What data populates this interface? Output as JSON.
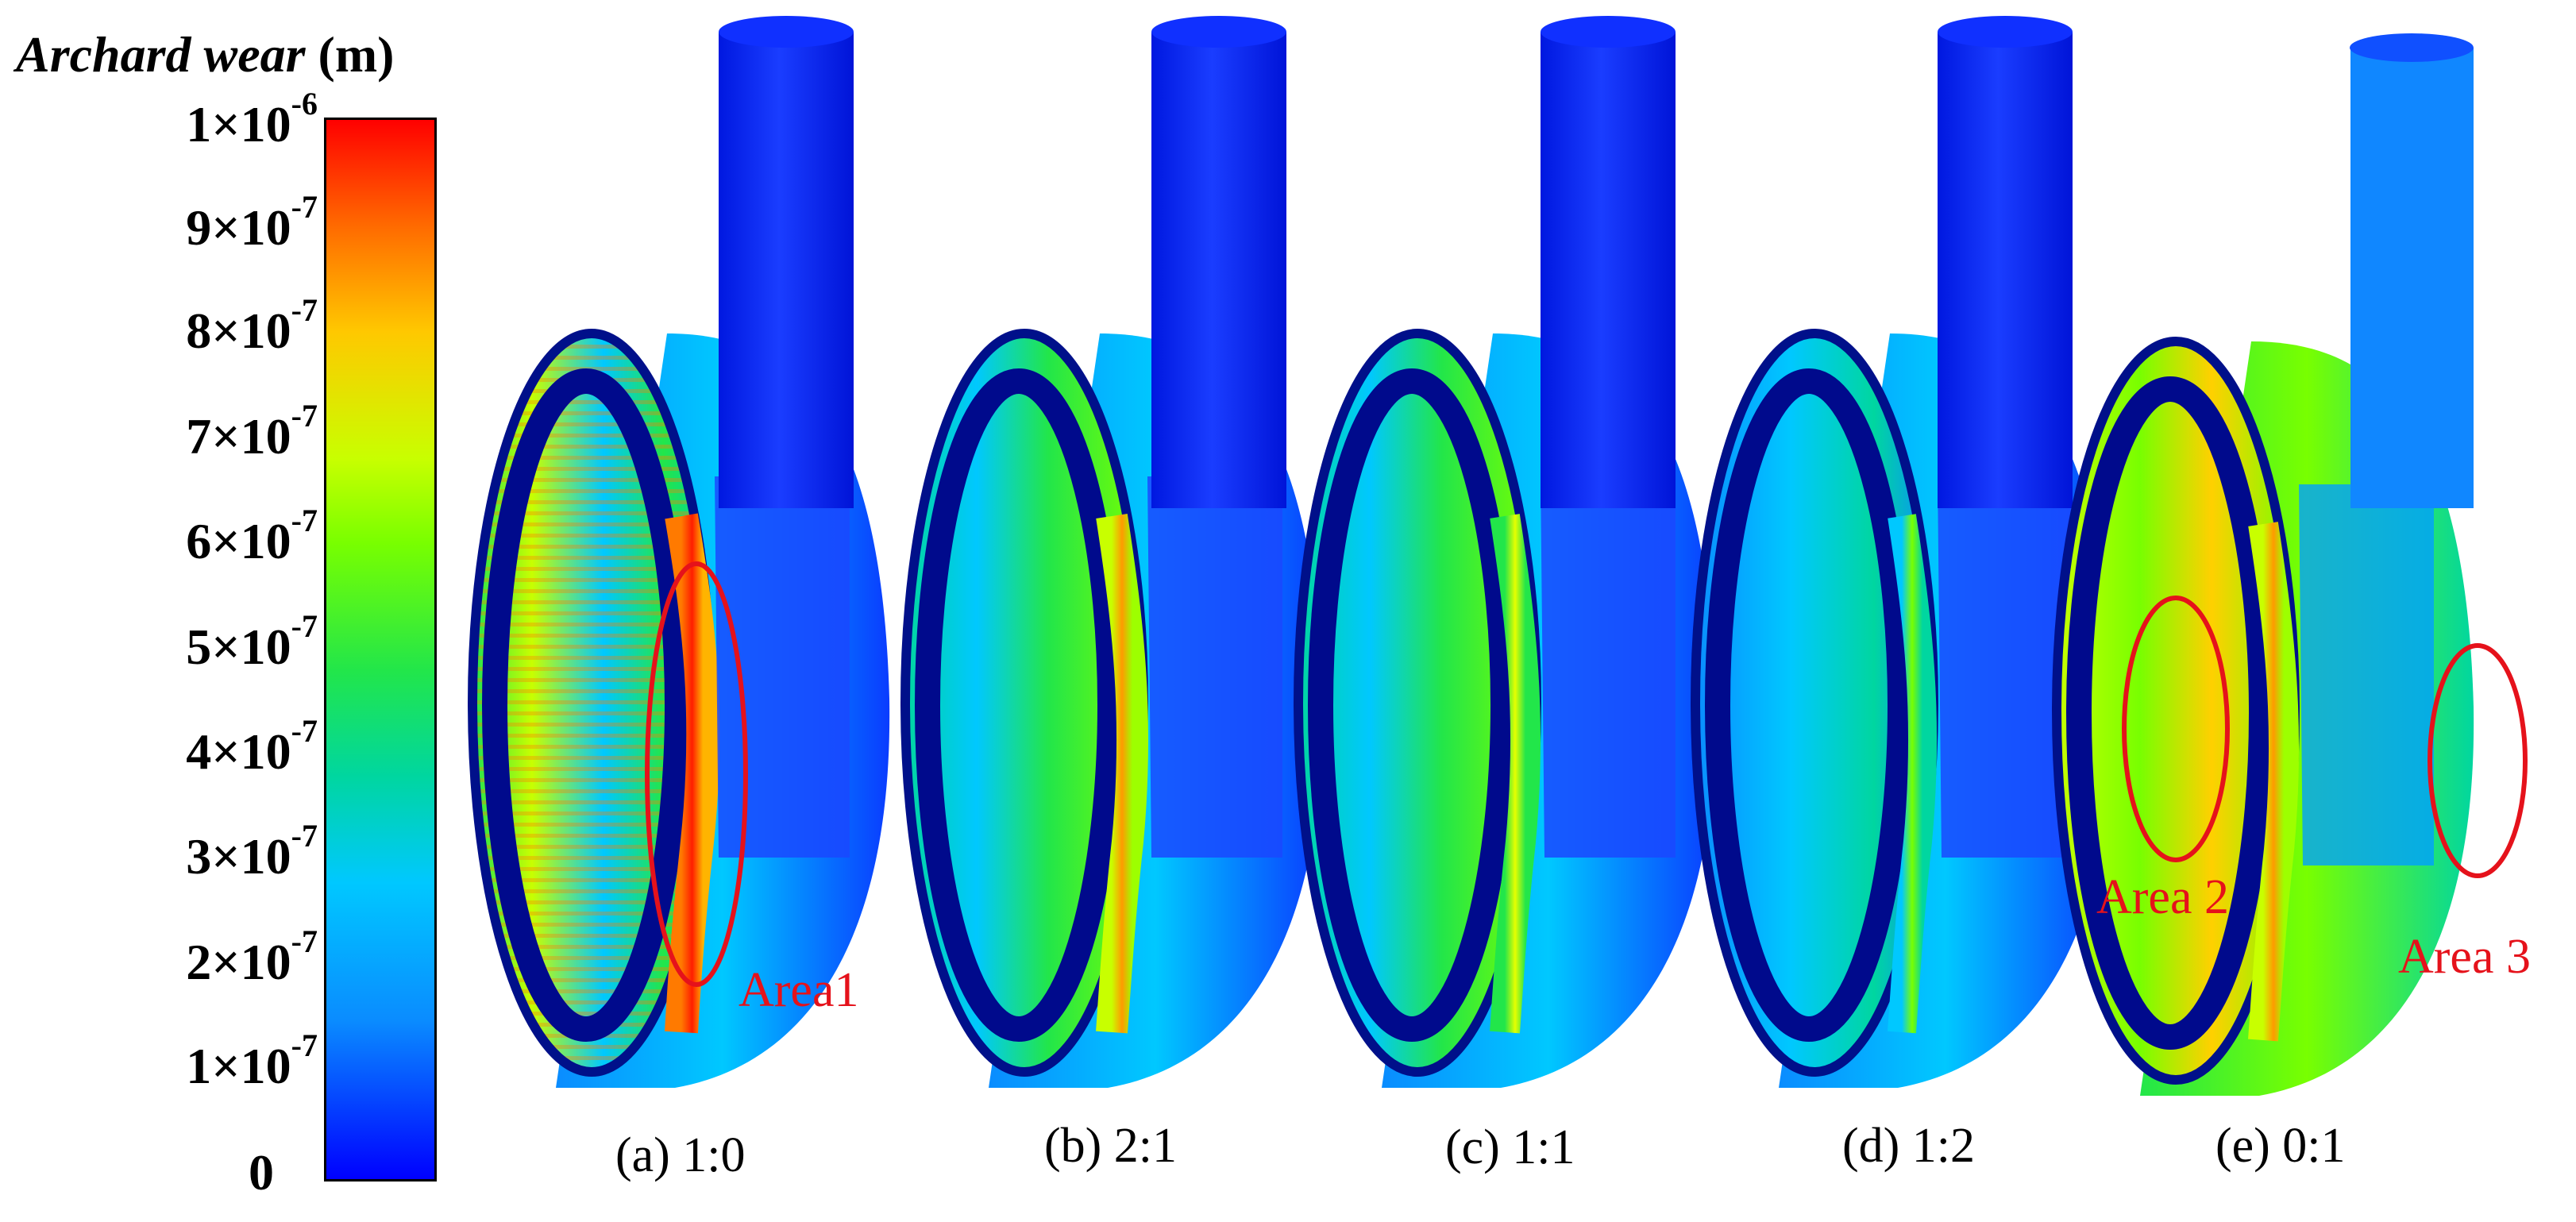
{
  "legend": {
    "title_italic": "Archard wear",
    "title_unit": " (m)",
    "ticks": [
      {
        "m": "1×10",
        "e": "-6"
      },
      {
        "m": "9×10",
        "e": "-7"
      },
      {
        "m": "8×10",
        "e": "-7"
      },
      {
        "m": "7×10",
        "e": "-7"
      },
      {
        "m": "6×10",
        "e": "-7"
      },
      {
        "m": "5×10",
        "e": "-7"
      },
      {
        "m": "4×10",
        "e": "-7"
      },
      {
        "m": "3×10",
        "e": "-7"
      },
      {
        "m": "2×10",
        "e": "-7"
      },
      {
        "m": "1×10",
        "e": "-7"
      },
      {
        "m": "0",
        "e": ""
      }
    ],
    "colors": [
      "#0000ff",
      "#0a8cff",
      "#00c8ff",
      "#00d6a0",
      "#22e64a",
      "#78ff00",
      "#c8ff00",
      "#ffc800",
      "#ff6a00",
      "#ff0000"
    ]
  },
  "panels": [
    {
      "caption": "(a) 1:0"
    },
    {
      "caption": "(b) 2:1"
    },
    {
      "caption": "(c) 1:1"
    },
    {
      "caption": "(d) 1:2"
    },
    {
      "caption": "(e) 0:1"
    }
  ],
  "areas": [
    {
      "label": "Area1"
    },
    {
      "label": "Area 2"
    },
    {
      "label": "Area 3"
    }
  ]
}
